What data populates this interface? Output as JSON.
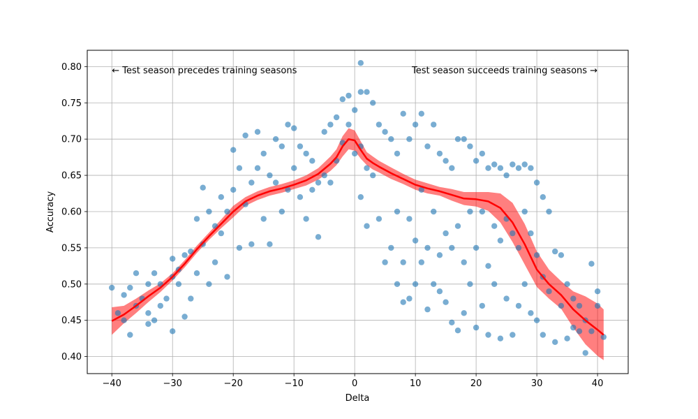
{
  "chart_data": {
    "type": "scatter",
    "xlabel": "Delta",
    "ylabel": "Accuracy",
    "xlim": [
      -44.05,
      45.05
    ],
    "ylim": [
      0.3765,
      0.8225
    ],
    "xticks": [
      -40,
      -30,
      -20,
      -10,
      0,
      10,
      20,
      30,
      40
    ],
    "yticks": [
      0.4,
      0.45,
      0.5,
      0.55,
      0.6,
      0.65,
      0.7,
      0.75,
      0.8
    ],
    "grid": true,
    "annotations": [
      {
        "text": "← Test season precedes training seasons",
        "x": -40,
        "y": 0.795,
        "anchor": "start"
      },
      {
        "text": "Test season succeeds training seasons →",
        "x": 40,
        "y": 0.795,
        "anchor": "end"
      }
    ],
    "colors": {
      "scatter": "#1f77b4",
      "trend": "#ff0000",
      "band": "#ff0000"
    },
    "scatter_points": [
      [
        -40,
        0.495
      ],
      [
        -39,
        0.46
      ],
      [
        -38,
        0.45
      ],
      [
        -38,
        0.485
      ],
      [
        -37,
        0.43
      ],
      [
        -37,
        0.495
      ],
      [
        -36,
        0.515
      ],
      [
        -36,
        0.47
      ],
      [
        -35,
        0.48
      ],
      [
        -34,
        0.5
      ],
      [
        -34,
        0.445
      ],
      [
        -34,
        0.46
      ],
      [
        -33,
        0.515
      ],
      [
        -33,
        0.45
      ],
      [
        -32,
        0.5
      ],
      [
        -32,
        0.47
      ],
      [
        -31,
        0.48
      ],
      [
        -30,
        0.535
      ],
      [
        -30,
        0.435
      ],
      [
        -30,
        0.51
      ],
      [
        -29,
        0.52
      ],
      [
        -29,
        0.5
      ],
      [
        -28,
        0.455
      ],
      [
        -28,
        0.54
      ],
      [
        -27,
        0.545
      ],
      [
        -27,
        0.48
      ],
      [
        -26,
        0.59
      ],
      [
        -26,
        0.515
      ],
      [
        -25,
        0.633
      ],
      [
        -25,
        0.555
      ],
      [
        -24,
        0.6
      ],
      [
        -24,
        0.5
      ],
      [
        -23,
        0.58
      ],
      [
        -23,
        0.53
      ],
      [
        -22,
        0.62
      ],
      [
        -22,
        0.57
      ],
      [
        -21,
        0.6
      ],
      [
        -21,
        0.51
      ],
      [
        -20,
        0.685
      ],
      [
        -20,
        0.63
      ],
      [
        -19,
        0.66
      ],
      [
        -19,
        0.55
      ],
      [
        -18,
        0.705
      ],
      [
        -18,
        0.61
      ],
      [
        -17,
        0.64
      ],
      [
        -17,
        0.555
      ],
      [
        -16,
        0.71
      ],
      [
        -16,
        0.66
      ],
      [
        -15,
        0.68
      ],
      [
        -15,
        0.59
      ],
      [
        -14,
        0.65
      ],
      [
        -14,
        0.555
      ],
      [
        -13,
        0.7
      ],
      [
        -13,
        0.64
      ],
      [
        -12,
        0.69
      ],
      [
        -12,
        0.6
      ],
      [
        -11,
        0.72
      ],
      [
        -11,
        0.63
      ],
      [
        -10,
        0.715
      ],
      [
        -10,
        0.66
      ],
      [
        -9,
        0.69
      ],
      [
        -9,
        0.62
      ],
      [
        -8,
        0.68
      ],
      [
        -8,
        0.59
      ],
      [
        -7,
        0.67
      ],
      [
        -7,
        0.63
      ],
      [
        -6,
        0.64
      ],
      [
        -6,
        0.565
      ],
      [
        -5,
        0.71
      ],
      [
        -5,
        0.65
      ],
      [
        -4,
        0.72
      ],
      [
        -4,
        0.64
      ],
      [
        -3,
        0.73
      ],
      [
        -3,
        0.67
      ],
      [
        -2,
        0.755
      ],
      [
        -2,
        0.695
      ],
      [
        -1,
        0.76
      ],
      [
        -1,
        0.72
      ],
      [
        0,
        0.74
      ],
      [
        0,
        0.68
      ],
      [
        1,
        0.805
      ],
      [
        1,
        0.765
      ],
      [
        1,
        0.69
      ],
      [
        1,
        0.62
      ],
      [
        2,
        0.765
      ],
      [
        2,
        0.66
      ],
      [
        2,
        0.58
      ],
      [
        3,
        0.75
      ],
      [
        3,
        0.65
      ],
      [
        4,
        0.72
      ],
      [
        4,
        0.59
      ],
      [
        5,
        0.71
      ],
      [
        5,
        0.53
      ],
      [
        6,
        0.7
      ],
      [
        6,
        0.55
      ],
      [
        7,
        0.68
      ],
      [
        7,
        0.6
      ],
      [
        7,
        0.5
      ],
      [
        8,
        0.735
      ],
      [
        8,
        0.53
      ],
      [
        8,
        0.475
      ],
      [
        9,
        0.7
      ],
      [
        9,
        0.59
      ],
      [
        9,
        0.48
      ],
      [
        10,
        0.72
      ],
      [
        10,
        0.56
      ],
      [
        10,
        0.5
      ],
      [
        11,
        0.735
      ],
      [
        11,
        0.63
      ],
      [
        11,
        0.53
      ],
      [
        12,
        0.69
      ],
      [
        12,
        0.55
      ],
      [
        12,
        0.465
      ],
      [
        13,
        0.72
      ],
      [
        13,
        0.6
      ],
      [
        13,
        0.5
      ],
      [
        14,
        0.68
      ],
      [
        14,
        0.54
      ],
      [
        14,
        0.49
      ],
      [
        15,
        0.67
      ],
      [
        15,
        0.57
      ],
      [
        15,
        0.475
      ],
      [
        16,
        0.66
      ],
      [
        16,
        0.55
      ],
      [
        16,
        0.447
      ],
      [
        17,
        0.7
      ],
      [
        17,
        0.58
      ],
      [
        17,
        0.436
      ],
      [
        18,
        0.7
      ],
      [
        18,
        0.53
      ],
      [
        18,
        0.46
      ],
      [
        19,
        0.69
      ],
      [
        19,
        0.6
      ],
      [
        19,
        0.5
      ],
      [
        20,
        0.67
      ],
      [
        20,
        0.55
      ],
      [
        20,
        0.44
      ],
      [
        21,
        0.68
      ],
      [
        21,
        0.6
      ],
      [
        21,
        0.47
      ],
      [
        22,
        0.66
      ],
      [
        22,
        0.525
      ],
      [
        22,
        0.43
      ],
      [
        23,
        0.665
      ],
      [
        23,
        0.58
      ],
      [
        23,
        0.5
      ],
      [
        24,
        0.66
      ],
      [
        24,
        0.56
      ],
      [
        24,
        0.425
      ],
      [
        25,
        0.65
      ],
      [
        25,
        0.59
      ],
      [
        25,
        0.48
      ],
      [
        26,
        0.665
      ],
      [
        26,
        0.57
      ],
      [
        26,
        0.43
      ],
      [
        27,
        0.66
      ],
      [
        27,
        0.55
      ],
      [
        27,
        0.47
      ],
      [
        28,
        0.665
      ],
      [
        28,
        0.6
      ],
      [
        28,
        0.5
      ],
      [
        29,
        0.66
      ],
      [
        29,
        0.57
      ],
      [
        29,
        0.46
      ],
      [
        30,
        0.64
      ],
      [
        30,
        0.54
      ],
      [
        30,
        0.45
      ],
      [
        31,
        0.62
      ],
      [
        31,
        0.51
      ],
      [
        31,
        0.43
      ],
      [
        32,
        0.6
      ],
      [
        32,
        0.49
      ],
      [
        33,
        0.545
      ],
      [
        33,
        0.42
      ],
      [
        34,
        0.54
      ],
      [
        34,
        0.47
      ],
      [
        35,
        0.5
      ],
      [
        35,
        0.425
      ],
      [
        36,
        0.48
      ],
      [
        36,
        0.44
      ],
      [
        37,
        0.47
      ],
      [
        37,
        0.435
      ],
      [
        38,
        0.405
      ],
      [
        38,
        0.45
      ],
      [
        39,
        0.528
      ],
      [
        39,
        0.435
      ],
      [
        40,
        0.49
      ],
      [
        40,
        0.47
      ],
      [
        41,
        0.427
      ]
    ],
    "trend": {
      "x": [
        -40,
        -38,
        -36,
        -34,
        -32,
        -30,
        -28,
        -26,
        -24,
        -22,
        -20,
        -18,
        -16,
        -14,
        -12,
        -10,
        -8,
        -6,
        -4,
        -3,
        -2,
        -1,
        0,
        1,
        2,
        3,
        4,
        6,
        8,
        10,
        12,
        14,
        16,
        18,
        20,
        22,
        24,
        26,
        28,
        30,
        32,
        34,
        36,
        38,
        40,
        41
      ],
      "y": [
        0.449,
        0.458,
        0.47,
        0.483,
        0.495,
        0.51,
        0.528,
        0.548,
        0.566,
        0.583,
        0.6,
        0.614,
        0.622,
        0.628,
        0.632,
        0.637,
        0.643,
        0.652,
        0.666,
        0.675,
        0.69,
        0.7,
        0.698,
        0.685,
        0.673,
        0.667,
        0.662,
        0.653,
        0.645,
        0.637,
        0.632,
        0.628,
        0.623,
        0.618,
        0.617,
        0.614,
        0.605,
        0.585,
        0.555,
        0.52,
        0.5,
        0.485,
        0.465,
        0.45,
        0.437,
        0.43
      ],
      "lower": [
        0.43,
        0.446,
        0.46,
        0.475,
        0.489,
        0.505,
        0.523,
        0.543,
        0.561,
        0.577,
        0.592,
        0.608,
        0.616,
        0.622,
        0.626,
        0.631,
        0.636,
        0.644,
        0.656,
        0.664,
        0.676,
        0.686,
        0.684,
        0.673,
        0.664,
        0.658,
        0.654,
        0.645,
        0.638,
        0.63,
        0.625,
        0.622,
        0.615,
        0.609,
        0.607,
        0.601,
        0.585,
        0.558,
        0.527,
        0.496,
        0.48,
        0.466,
        0.44,
        0.417,
        0.401,
        0.395
      ],
      "upper": [
        0.468,
        0.47,
        0.48,
        0.491,
        0.501,
        0.515,
        0.533,
        0.553,
        0.571,
        0.589,
        0.608,
        0.62,
        0.628,
        0.634,
        0.638,
        0.643,
        0.65,
        0.66,
        0.676,
        0.686,
        0.704,
        0.715,
        0.712,
        0.697,
        0.682,
        0.676,
        0.67,
        0.661,
        0.652,
        0.644,
        0.639,
        0.634,
        0.631,
        0.627,
        0.627,
        0.627,
        0.625,
        0.612,
        0.583,
        0.545,
        0.52,
        0.504,
        0.49,
        0.483,
        0.473,
        0.465
      ]
    }
  }
}
